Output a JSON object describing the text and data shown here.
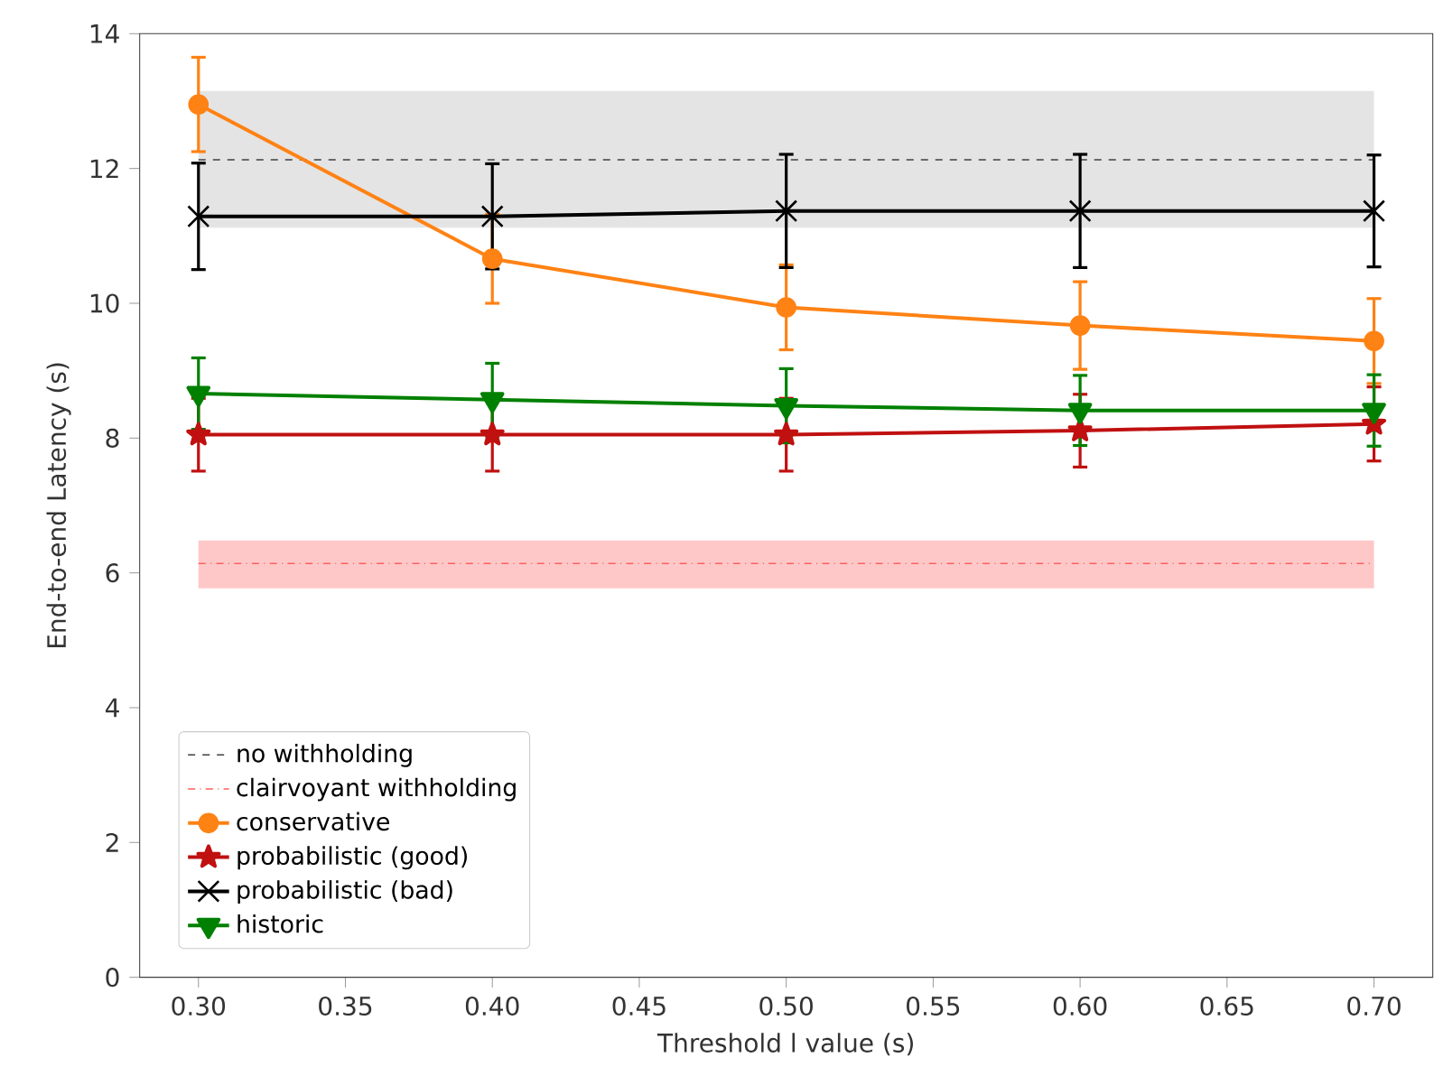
{
  "chart_data": {
    "type": "line",
    "xlabel": "Threshold l value (s)",
    "ylabel": "End-to-end Latency (s)",
    "x": [
      0.3,
      0.4,
      0.5,
      0.6,
      0.7
    ],
    "xlim": [
      0.28,
      0.72
    ],
    "ylim": [
      0,
      14
    ],
    "xticks": [
      {
        "value": 0.3,
        "label": "0.30"
      },
      {
        "value": 0.35,
        "label": "0.35"
      },
      {
        "value": 0.4,
        "label": "0.40"
      },
      {
        "value": 0.45,
        "label": "0.45"
      },
      {
        "value": 0.5,
        "label": "0.50"
      },
      {
        "value": 0.55,
        "label": "0.55"
      },
      {
        "value": 0.6,
        "label": "0.60"
      },
      {
        "value": 0.65,
        "label": "0.65"
      },
      {
        "value": 0.7,
        "label": "0.70"
      }
    ],
    "yticks": [
      0,
      2,
      4,
      6,
      8,
      10,
      12,
      14
    ],
    "legend": "bottom left",
    "ref_lines": [
      {
        "axis": "y",
        "value": 12.13,
        "label": "no withholding",
        "color": "#404040",
        "line_style": "dashed"
      },
      {
        "axis": "y",
        "value": 6.14,
        "label": "clairvoyant withholding",
        "color": "#ff6060",
        "line_style": "dashdot"
      }
    ],
    "bands": [
      {
        "axis": "y",
        "from": 11.12,
        "to": 13.15,
        "color": "#e4e4e4"
      },
      {
        "axis": "y",
        "from": 5.77,
        "to": 6.48,
        "color": "#ffc8c8"
      }
    ],
    "series": [
      {
        "name": "conservative",
        "color": "#ff8214",
        "marker": "circle",
        "values": [
          12.95,
          10.66,
          9.94,
          9.67,
          9.44
        ],
        "errors": [
          0.7,
          0.66,
          0.63,
          0.65,
          0.63
        ]
      },
      {
        "name": "probabilistic (good)",
        "color": "#c01010",
        "marker": "star",
        "values": [
          8.05,
          8.05,
          8.05,
          8.11,
          8.21
        ],
        "errors": [
          0.54,
          0.54,
          0.54,
          0.54,
          0.55
        ]
      },
      {
        "name": "probabilistic (bad)",
        "color": "#000000",
        "marker": "cross",
        "values": [
          11.29,
          11.29,
          11.37,
          11.37,
          11.37
        ],
        "errors": [
          0.79,
          0.78,
          0.84,
          0.84,
          0.83
        ]
      },
      {
        "name": "historic",
        "color": "#008000",
        "marker": "triangle",
        "values": [
          8.66,
          8.57,
          8.48,
          8.41,
          8.41
        ],
        "errors": [
          0.53,
          0.54,
          0.55,
          0.52,
          0.53
        ]
      }
    ]
  }
}
